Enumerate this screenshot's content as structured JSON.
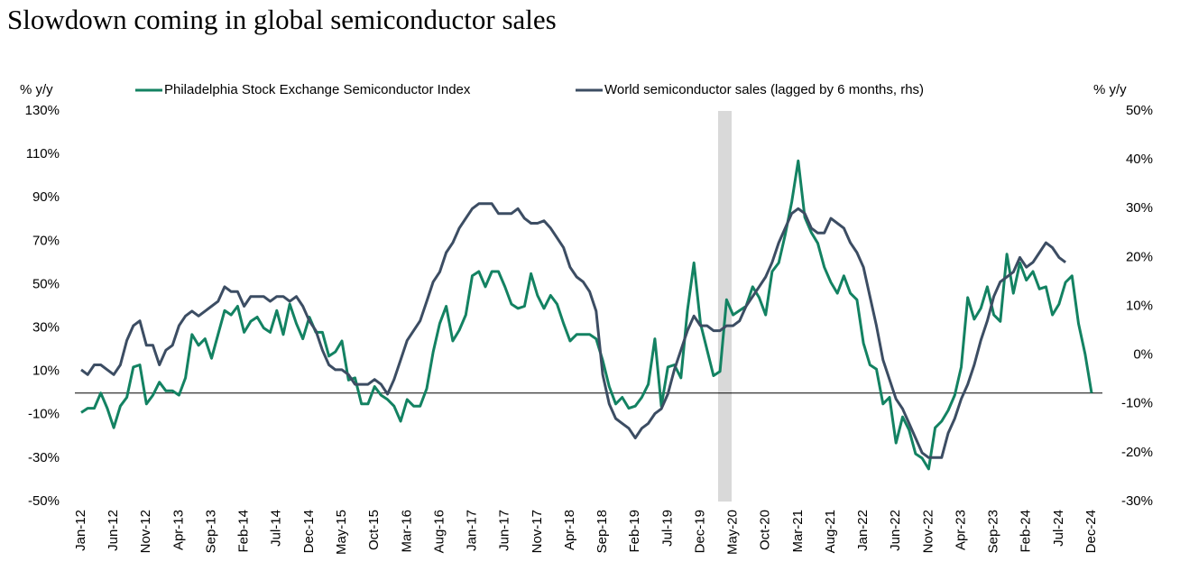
{
  "chart_data": {
    "type": "line",
    "title": "Slowdown coming in global semiconductor sales",
    "y_label": "% y/y",
    "y2_label": "% y/y",
    "categories": [
      "Jan-12",
      null,
      null,
      null,
      null,
      "Jun-12",
      null,
      null,
      null,
      null,
      "Nov-12",
      null,
      null,
      null,
      null,
      "Apr-13",
      null,
      null,
      null,
      null,
      "Sep-13",
      null,
      null,
      null,
      null,
      "Feb-14",
      null,
      null,
      null,
      null,
      "Jul-14",
      null,
      null,
      null,
      null,
      "Dec-14",
      null,
      null,
      null,
      null,
      "May-15",
      null,
      null,
      null,
      null,
      "Oct-15",
      null,
      null,
      null,
      null,
      "Mar-16",
      null,
      null,
      null,
      null,
      "Aug-16",
      null,
      null,
      null,
      null,
      "Jan-17",
      null,
      null,
      null,
      null,
      "Jun-17",
      null,
      null,
      null,
      null,
      "Nov-17",
      null,
      null,
      null,
      null,
      "Apr-18",
      null,
      null,
      null,
      null,
      "Sep-18",
      null,
      null,
      null,
      null,
      "Feb-19",
      null,
      null,
      null,
      null,
      "Jul-19",
      null,
      null,
      null,
      null,
      "Dec-19",
      null,
      null,
      null,
      null,
      "May-20",
      null,
      null,
      null,
      null,
      "Oct-20",
      null,
      null,
      null,
      null,
      "Mar-21",
      null,
      null,
      null,
      null,
      "Aug-21",
      null,
      null,
      null,
      null,
      "Jan-22",
      null,
      null,
      null,
      null,
      "Jun-22",
      null,
      null,
      null,
      null,
      "Nov-22",
      null,
      null,
      null,
      null,
      "Apr-23",
      null,
      null,
      null,
      null,
      "Sep-23",
      null,
      null,
      null,
      null,
      "Feb-24",
      null,
      null,
      null,
      null,
      "Jul-24",
      null,
      null,
      null,
      null,
      "Dec-24"
    ],
    "series": [
      {
        "name": "Philadelphia Stock Exchange Semiconductor Index",
        "color": "#138262",
        "axis": "y",
        "values": [
          -9,
          -7,
          -7,
          0,
          -7,
          -16,
          -6,
          -2,
          12,
          13,
          -5,
          -1,
          5,
          1,
          1,
          -1,
          7,
          27,
          22,
          25,
          16,
          27,
          38,
          36,
          40,
          28,
          33,
          35,
          30,
          28,
          38,
          27,
          41,
          32,
          25,
          35,
          28,
          28,
          17,
          19,
          24,
          6,
          7,
          -5,
          -5,
          3,
          -1,
          -3,
          -6,
          -13,
          -3,
          -6,
          -6,
          2,
          19,
          32,
          40,
          24,
          29,
          36,
          54,
          56,
          49,
          56,
          56,
          49,
          41,
          39,
          40,
          55,
          45,
          39,
          45,
          41,
          32,
          24,
          27,
          27,
          27,
          25,
          15,
          3,
          -5,
          -2,
          -7,
          -6,
          -2,
          4,
          25,
          -6,
          12,
          13,
          7,
          38,
          60,
          32,
          20,
          8,
          10,
          43,
          36,
          38,
          40,
          49,
          44,
          36,
          56,
          60,
          73,
          88,
          107,
          81,
          74,
          69,
          58,
          51,
          46,
          54,
          46,
          43,
          23,
          13,
          11,
          -5,
          -2,
          -23,
          -11,
          -17,
          -28,
          -30,
          -35,
          -16,
          -13,
          -8,
          -1,
          12,
          44,
          34,
          39,
          49,
          36,
          33,
          64,
          46,
          60,
          52,
          56,
          48,
          49,
          36,
          41,
          51,
          54,
          32,
          18,
          0
        ]
      },
      {
        "name": "World semiconductor sales (lagged by 6 months, rhs)",
        "color": "#3c4d63",
        "axis": "y2",
        "values": [
          -3,
          -4,
          -2,
          -2,
          -3,
          -4,
          -2,
          3,
          6,
          7,
          2,
          2,
          -2,
          1,
          2,
          6,
          8,
          9,
          8,
          9,
          10,
          11,
          14,
          13,
          13,
          10,
          12,
          12,
          12,
          11,
          12,
          12,
          11,
          12,
          10,
          7,
          5,
          1,
          -2,
          -3,
          -3,
          -4,
          -6,
          -6,
          -6,
          -5,
          -6,
          -8,
          -5,
          -1,
          3,
          5,
          7,
          11,
          15,
          17,
          21,
          23,
          26,
          28,
          30,
          31,
          31,
          31,
          29,
          29,
          29,
          30,
          28,
          27,
          27,
          27.5,
          26,
          24,
          22,
          18,
          16,
          15,
          13,
          9,
          -4,
          -10,
          -13,
          -14,
          -15,
          -17,
          -15,
          -14,
          -12,
          -11,
          -8,
          -3,
          1,
          5,
          8,
          6,
          6,
          5,
          5,
          6,
          6,
          7,
          10,
          12,
          14,
          16,
          19,
          23,
          26,
          29,
          30,
          29,
          26,
          25,
          25,
          28,
          27,
          26,
          23,
          21,
          18,
          12,
          6,
          -1,
          -5,
          -9,
          -11,
          -14,
          -17,
          -20,
          -21,
          -21,
          -21,
          -16,
          -13,
          -9,
          -6,
          -2,
          3,
          7,
          12,
          15,
          16,
          17,
          20,
          18,
          19,
          21,
          23,
          22,
          20,
          19,
          null,
          null,
          null,
          null
        ]
      }
    ],
    "ylim": [
      -50,
      130
    ],
    "yticks": [
      {
        "value": 130,
        "label": "130%"
      },
      {
        "value": 110,
        "label": "110%"
      },
      {
        "value": 90,
        "label": "90%"
      },
      {
        "value": 70,
        "label": "70%"
      },
      {
        "value": 50,
        "label": "50%"
      },
      {
        "value": 30,
        "label": "30%"
      },
      {
        "value": 10,
        "label": "10%"
      },
      {
        "value": -10,
        "label": "-10%"
      },
      {
        "value": -30,
        "label": "-30%"
      },
      {
        "value": -50,
        "label": "-50%"
      }
    ],
    "y2lim": [
      -30,
      50
    ],
    "y2ticks": [
      {
        "value": 50,
        "label": "50%"
      },
      {
        "value": 40,
        "label": "40%"
      },
      {
        "value": 30,
        "label": "30%"
      },
      {
        "value": 20,
        "label": "20%"
      },
      {
        "value": 10,
        "label": "10%"
      },
      {
        "value": 0,
        "label": "0%"
      },
      {
        "value": -10,
        "label": "-10%"
      },
      {
        "value": -20,
        "label": "-20%"
      },
      {
        "value": -30,
        "label": "-30%"
      }
    ],
    "grid": false,
    "legend": "top"
  }
}
